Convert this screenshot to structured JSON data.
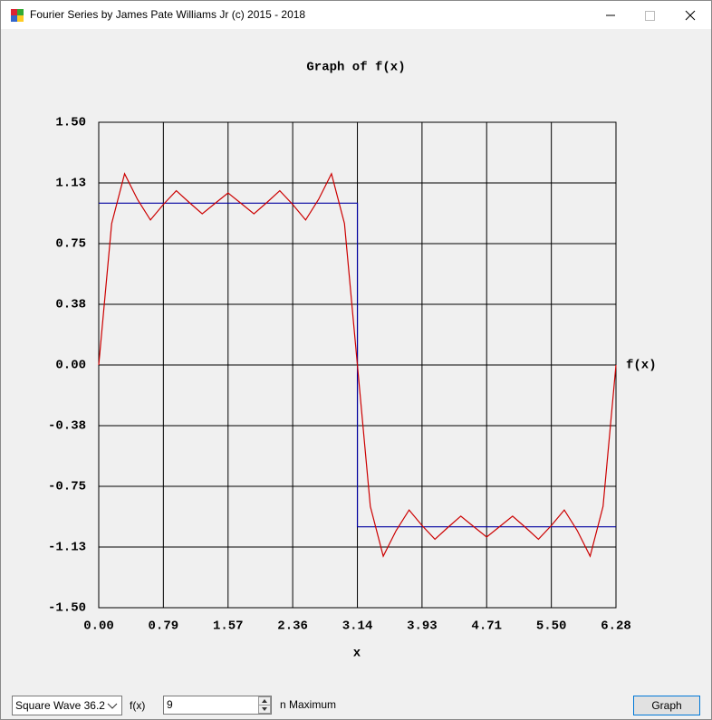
{
  "window": {
    "title": "Fourier Series by James Pate Williams Jr (c) 2015 - 2018"
  },
  "chart_data": {
    "type": "line",
    "title": "Graph of f(x)",
    "x_label": "x",
    "y_label": "f(x)",
    "xlim": [
      0,
      6.283
    ],
    "ylim": [
      -1.5,
      1.5
    ],
    "grid": true,
    "xticks": [
      {
        "value": 0,
        "label": "0.00"
      },
      {
        "value": 0.785,
        "label": "0.79"
      },
      {
        "value": 1.571,
        "label": "1.57"
      },
      {
        "value": 2.356,
        "label": "2.36"
      },
      {
        "value": 3.142,
        "label": "3.14"
      },
      {
        "value": 3.927,
        "label": "3.93"
      },
      {
        "value": 4.712,
        "label": "4.71"
      },
      {
        "value": 5.498,
        "label": "5.50"
      },
      {
        "value": 6.283,
        "label": "6.28"
      }
    ],
    "yticks": [
      {
        "value": 1.5,
        "label": "1.50"
      },
      {
        "value": 1.125,
        "label": "1.13"
      },
      {
        "value": 0.75,
        "label": "0.75"
      },
      {
        "value": 0.375,
        "label": "0.38"
      },
      {
        "value": 0,
        "label": "0.00"
      },
      {
        "value": -0.375,
        "label": "-0.38"
      },
      {
        "value": -0.75,
        "label": "-0.75"
      },
      {
        "value": -1.125,
        "label": "-1.13"
      },
      {
        "value": -1.5,
        "label": "-1.50"
      }
    ],
    "series": [
      {
        "color": "#0000a0",
        "x": [
          0,
          3.142,
          3.142,
          6.283
        ],
        "values": [
          1,
          1,
          -1,
          -1
        ]
      },
      {
        "color": "#cc0000",
        "x": [
          0,
          0.157,
          0.314,
          0.471,
          0.628,
          0.785,
          0.942,
          1.1,
          1.257,
          1.414,
          1.571,
          1.728,
          1.885,
          2.042,
          2.199,
          2.356,
          2.513,
          2.67,
          2.827,
          2.985,
          3.142,
          3.299,
          3.456,
          3.613,
          3.77,
          3.927,
          4.084,
          4.241,
          4.398,
          4.555,
          4.712,
          4.869,
          5.027,
          5.184,
          5.341,
          5.498,
          5.655,
          5.812,
          5.969,
          6.126,
          6.283
        ],
        "values": [
          0,
          0.874,
          1.182,
          1.023,
          0.896,
          0.992,
          1.077,
          1.004,
          0.934,
          0.999,
          1.063,
          0.999,
          0.934,
          1.004,
          1.077,
          0.992,
          0.896,
          1.023,
          1.182,
          0.874,
          0,
          -0.874,
          -1.182,
          -1.023,
          -0.896,
          -0.992,
          -1.077,
          -1.004,
          -0.934,
          -0.999,
          -1.063,
          -0.999,
          -0.934,
          -1.004,
          -1.077,
          -0.992,
          -0.896,
          -1.023,
          -1.182,
          -0.874,
          0
        ]
      }
    ]
  },
  "controls": {
    "function_select": "Square Wave 36.2",
    "fx_label": "f(x)",
    "n_input": "9",
    "n_label": "n Maximum",
    "button": "Graph"
  }
}
